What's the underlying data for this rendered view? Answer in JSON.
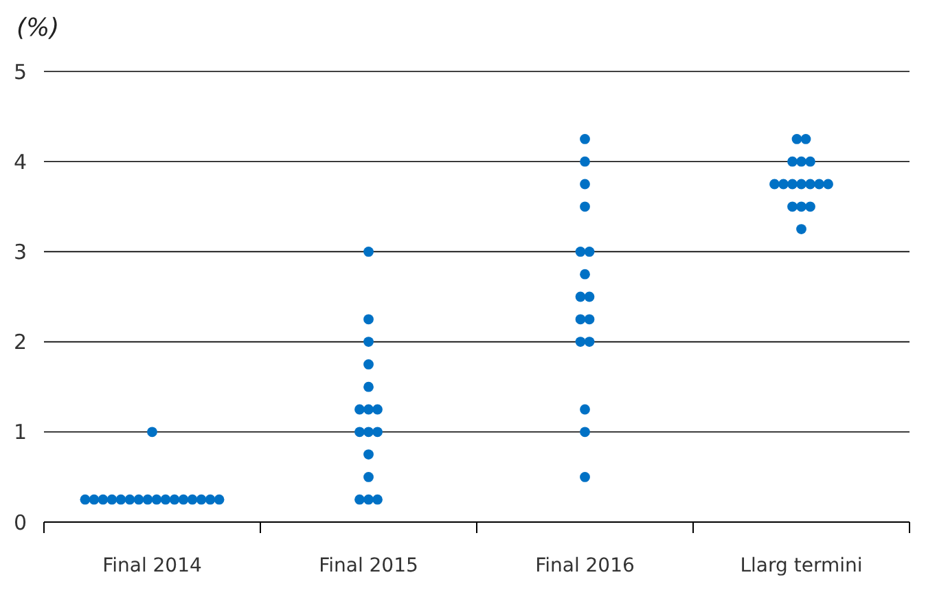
{
  "chart_data": {
    "type": "scatter",
    "ylabel": "(%)",
    "categories": [
      "Final 2014",
      "Final 2015",
      "Final 2016",
      "Llarg termini"
    ],
    "series": [
      {
        "color": "#0071c5",
        "x": [
          "Final 2014",
          "Final 2014",
          "Final 2014",
          "Final 2014",
          "Final 2014",
          "Final 2014",
          "Final 2014",
          "Final 2014",
          "Final 2014",
          "Final 2014",
          "Final 2014",
          "Final 2014",
          "Final 2014",
          "Final 2014",
          "Final 2014",
          "Final 2014",
          "Final 2014",
          "Final 2015",
          "Final 2015",
          "Final 2015",
          "Final 2015",
          "Final 2015",
          "Final 2015",
          "Final 2015",
          "Final 2015",
          "Final 2015",
          "Final 2015",
          "Final 2015",
          "Final 2015",
          "Final 2015",
          "Final 2015",
          "Final 2015",
          "Final 2015",
          "Final 2016",
          "Final 2016",
          "Final 2016",
          "Final 2016",
          "Final 2016",
          "Final 2016",
          "Final 2016",
          "Final 2016",
          "Final 2016",
          "Final 2016",
          "Final 2016",
          "Final 2016",
          "Final 2016",
          "Final 2016",
          "Final 2016",
          "Final 2016",
          "Llarg termini",
          "Llarg termini",
          "Llarg termini",
          "Llarg termini",
          "Llarg termini",
          "Llarg termini",
          "Llarg termini",
          "Llarg termini",
          "Llarg termini",
          "Llarg termini",
          "Llarg termini",
          "Llarg termini",
          "Llarg termini",
          "Llarg termini",
          "Llarg termini",
          "Llarg termini"
        ],
        "values": [
          0.25,
          0.25,
          0.25,
          0.25,
          0.25,
          0.25,
          0.25,
          0.25,
          0.25,
          0.25,
          0.25,
          0.25,
          0.25,
          0.25,
          0.25,
          0.25,
          1,
          0.25,
          0.25,
          0.25,
          0.5,
          0.75,
          1,
          1,
          1,
          1.25,
          1.25,
          1.25,
          1.5,
          1.75,
          2,
          2.25,
          3,
          0.5,
          1,
          1.25,
          2,
          2,
          2.25,
          2.25,
          2.5,
          2.5,
          2.75,
          3,
          3,
          3.5,
          3.75,
          4,
          4.25,
          3.25,
          3.5,
          3.5,
          3.5,
          3.75,
          3.75,
          3.75,
          3.75,
          3.75,
          3.75,
          3.75,
          4,
          4,
          4,
          4.25,
          4.25
        ]
      }
    ],
    "ylim": [
      0,
      5
    ],
    "yticks": [
      0,
      1,
      2,
      3,
      4,
      5
    ],
    "grid": "y",
    "marker": "circle"
  }
}
